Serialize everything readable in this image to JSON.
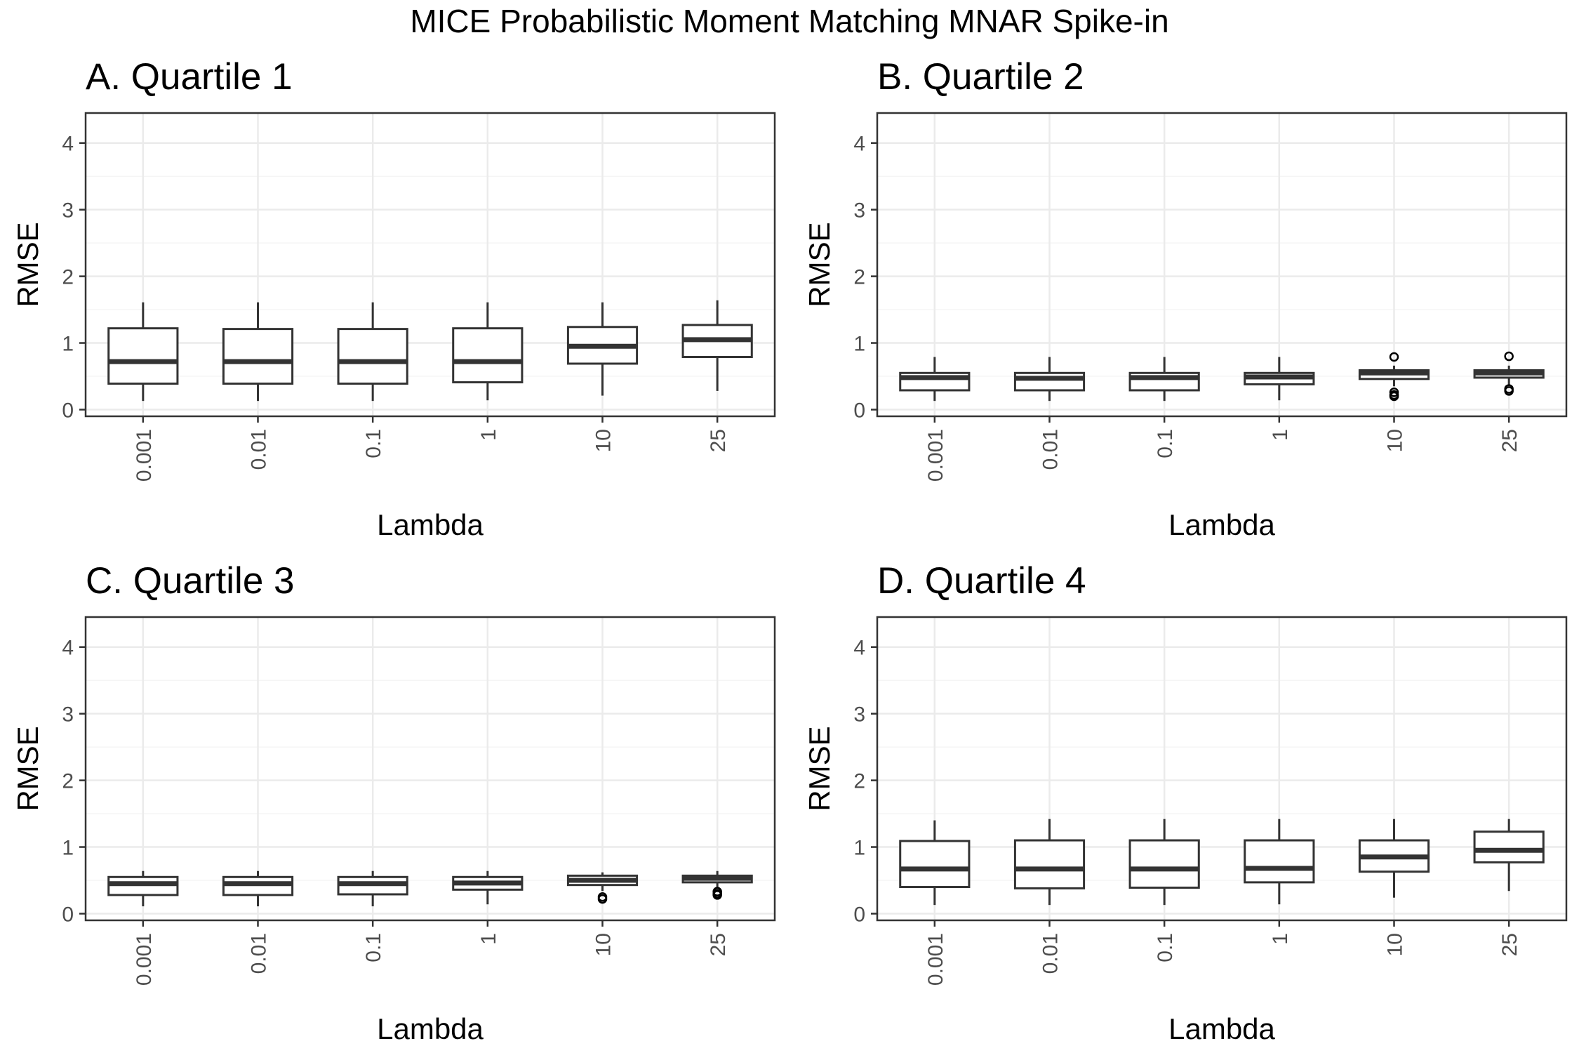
{
  "title": "MICE Probabilistic Moment Matching MNAR Spike-in",
  "colors": {
    "background": "#ffffff",
    "panel_border": "#333333",
    "grid_major": "#ebebeb",
    "grid_minor": "#f5f5f5",
    "box_stroke": "#333333",
    "tick_text": "#4d4d4d"
  },
  "chart_data": [
    {
      "type": "box",
      "title": "A. Quartile 1",
      "xlabel": "Lambda",
      "ylabel": "RMSE",
      "categories": [
        "0.001",
        "0.01",
        "0.1",
        "1",
        "10",
        "25"
      ],
      "yticks": [
        "0",
        "1",
        "2",
        "3",
        "4"
      ],
      "ylim": [
        -0.1,
        4.45
      ],
      "grid": true,
      "boxes": [
        {
          "whisker_low": 0.13,
          "q1": 0.39,
          "median": 0.72,
          "q3": 1.22,
          "whisker_high": 1.61,
          "outliers": []
        },
        {
          "whisker_low": 0.13,
          "q1": 0.39,
          "median": 0.72,
          "q3": 1.21,
          "whisker_high": 1.61,
          "outliers": []
        },
        {
          "whisker_low": 0.13,
          "q1": 0.39,
          "median": 0.72,
          "q3": 1.21,
          "whisker_high": 1.61,
          "outliers": []
        },
        {
          "whisker_low": 0.14,
          "q1": 0.41,
          "median": 0.72,
          "q3": 1.22,
          "whisker_high": 1.61,
          "outliers": []
        },
        {
          "whisker_low": 0.21,
          "q1": 0.69,
          "median": 0.95,
          "q3": 1.24,
          "whisker_high": 1.61,
          "outliers": []
        },
        {
          "whisker_low": 0.28,
          "q1": 0.79,
          "median": 1.05,
          "q3": 1.27,
          "whisker_high": 1.64,
          "outliers": []
        }
      ]
    },
    {
      "type": "box",
      "title": "B. Quartile 2",
      "xlabel": "Lambda",
      "ylabel": "RMSE",
      "categories": [
        "0.001",
        "0.01",
        "0.1",
        "1",
        "10",
        "25"
      ],
      "yticks": [
        "0",
        "1",
        "2",
        "3",
        "4"
      ],
      "ylim": [
        -0.1,
        4.45
      ],
      "grid": true,
      "boxes": [
        {
          "whisker_low": 0.13,
          "q1": 0.29,
          "median": 0.48,
          "q3": 0.55,
          "whisker_high": 0.79,
          "outliers": []
        },
        {
          "whisker_low": 0.13,
          "q1": 0.29,
          "median": 0.47,
          "q3": 0.55,
          "whisker_high": 0.79,
          "outliers": []
        },
        {
          "whisker_low": 0.13,
          "q1": 0.29,
          "median": 0.48,
          "q3": 0.55,
          "whisker_high": 0.79,
          "outliers": []
        },
        {
          "whisker_low": 0.14,
          "q1": 0.38,
          "median": 0.49,
          "q3": 0.55,
          "whisker_high": 0.79,
          "outliers": []
        },
        {
          "whisker_low": 0.35,
          "q1": 0.46,
          "median": 0.55,
          "q3": 0.59,
          "whisker_high": 0.66,
          "outliers": [
            0.79,
            0.26,
            0.22,
            0.2
          ]
        },
        {
          "whisker_low": 0.36,
          "q1": 0.48,
          "median": 0.55,
          "q3": 0.59,
          "whisker_high": 0.66,
          "outliers": [
            0.8,
            0.31,
            0.28
          ]
        }
      ]
    },
    {
      "type": "box",
      "title": "C. Quartile 3",
      "xlabel": "Lambda",
      "ylabel": "RMSE",
      "categories": [
        "0.001",
        "0.01",
        "0.1",
        "1",
        "10",
        "25"
      ],
      "yticks": [
        "0",
        "1",
        "2",
        "3",
        "4"
      ],
      "ylim": [
        -0.1,
        4.45
      ],
      "grid": true,
      "boxes": [
        {
          "whisker_low": 0.11,
          "q1": 0.28,
          "median": 0.45,
          "q3": 0.55,
          "whisker_high": 0.64,
          "outliers": []
        },
        {
          "whisker_low": 0.11,
          "q1": 0.28,
          "median": 0.45,
          "q3": 0.55,
          "whisker_high": 0.64,
          "outliers": []
        },
        {
          "whisker_low": 0.11,
          "q1": 0.29,
          "median": 0.45,
          "q3": 0.55,
          "whisker_high": 0.64,
          "outliers": []
        },
        {
          "whisker_low": 0.14,
          "q1": 0.36,
          "median": 0.46,
          "q3": 0.55,
          "whisker_high": 0.64,
          "outliers": []
        },
        {
          "whisker_low": 0.34,
          "q1": 0.43,
          "median": 0.5,
          "q3": 0.57,
          "whisker_high": 0.62,
          "outliers": [
            0.25,
            0.22
          ]
        },
        {
          "whisker_low": 0.38,
          "q1": 0.47,
          "median": 0.53,
          "q3": 0.57,
          "whisker_high": 0.64,
          "outliers": [
            0.33,
            0.3,
            0.28
          ]
        }
      ]
    },
    {
      "type": "box",
      "title": "D. Quartile 4",
      "xlabel": "Lambda",
      "ylabel": "RMSE",
      "categories": [
        "0.001",
        "0.01",
        "0.1",
        "1",
        "10",
        "25"
      ],
      "yticks": [
        "0",
        "1",
        "2",
        "3",
        "4"
      ],
      "ylim": [
        -0.1,
        4.45
      ],
      "grid": true,
      "boxes": [
        {
          "whisker_low": 0.13,
          "q1": 0.4,
          "median": 0.67,
          "q3": 1.09,
          "whisker_high": 1.4,
          "outliers": []
        },
        {
          "whisker_low": 0.13,
          "q1": 0.38,
          "median": 0.67,
          "q3": 1.1,
          "whisker_high": 1.42,
          "outliers": []
        },
        {
          "whisker_low": 0.13,
          "q1": 0.39,
          "median": 0.67,
          "q3": 1.1,
          "whisker_high": 1.42,
          "outliers": []
        },
        {
          "whisker_low": 0.14,
          "q1": 0.47,
          "median": 0.68,
          "q3": 1.1,
          "whisker_high": 1.42,
          "outliers": []
        },
        {
          "whisker_low": 0.24,
          "q1": 0.63,
          "median": 0.85,
          "q3": 1.1,
          "whisker_high": 1.42,
          "outliers": []
        },
        {
          "whisker_low": 0.34,
          "q1": 0.77,
          "median": 0.95,
          "q3": 1.23,
          "whisker_high": 1.42,
          "outliers": []
        }
      ]
    }
  ]
}
